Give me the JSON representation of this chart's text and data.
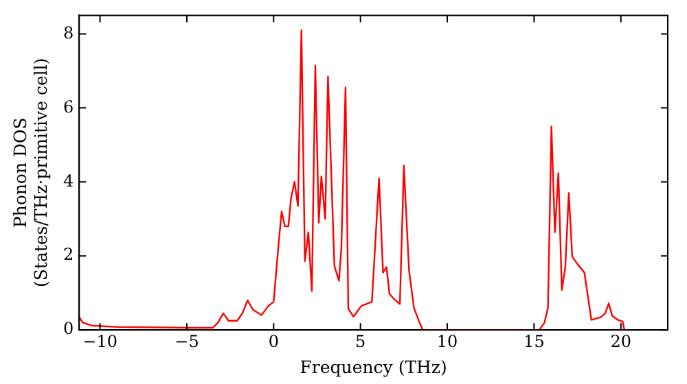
{
  "chart_data": {
    "type": "line",
    "xlabel": "Frequency (THz)",
    "ylabel": "Phonon DOS\n(States/THz·primitive cell)",
    "xlim": [
      -11.2,
      22.7
    ],
    "ylim": [
      0,
      8.5
    ],
    "xticks": [
      -10,
      -5,
      0,
      5,
      10,
      15,
      20
    ],
    "yticks": [
      0,
      2,
      4,
      6,
      8
    ],
    "grid": false,
    "legend": false,
    "marker": "none",
    "line_style": "solid",
    "series": [
      {
        "color": "#ff0000",
        "x": [
          -11.2,
          -11,
          -10.5,
          -9,
          -5,
          -3.5,
          -3.2,
          -2.9,
          -2.6,
          -2.1,
          -1.8,
          -1.5,
          -1.2,
          -0.7,
          -0.3,
          0,
          0.3,
          0.46,
          0.65,
          0.85,
          1.0,
          1.2,
          1.4,
          1.6,
          1.8,
          2.0,
          2.2,
          2.4,
          2.6,
          2.75,
          2.97,
          3.13,
          3.5,
          3.76,
          3.9,
          4.14,
          4.3,
          4.6,
          5.05,
          5.66,
          6.07,
          6.3,
          6.5,
          6.67,
          6.9,
          7.27,
          7.5,
          7.8,
          8.08,
          8.4,
          8.6,
          15.3,
          15.6,
          15.8,
          16.0,
          16.2,
          16.4,
          16.6,
          16.8,
          17.0,
          17.2,
          17.5,
          17.9,
          18.3,
          18.85,
          19.1,
          19.3,
          19.5,
          19.8,
          20.1,
          20.2
        ],
        "values": [
          0.35,
          0.2,
          0.12,
          0.08,
          0.06,
          0.06,
          0.2,
          0.45,
          0.25,
          0.25,
          0.45,
          0.8,
          0.55,
          0.4,
          0.65,
          0.76,
          2.4,
          3.2,
          2.8,
          2.8,
          3.55,
          4.0,
          3.35,
          8.1,
          1.86,
          2.64,
          1.05,
          7.14,
          2.9,
          4.15,
          3.0,
          6.84,
          1.73,
          1.33,
          2.2,
          6.55,
          0.57,
          0.36,
          0.65,
          0.76,
          4.1,
          1.55,
          1.7,
          0.98,
          0.85,
          0.7,
          4.44,
          1.6,
          0.6,
          0.2,
          0,
          0,
          0.2,
          0.6,
          5.5,
          2.64,
          4.24,
          1.08,
          1.7,
          3.7,
          1.98,
          1.78,
          1.55,
          0.27,
          0.35,
          0.45,
          0.72,
          0.38,
          0.28,
          0.23,
          0
        ]
      }
    ]
  }
}
